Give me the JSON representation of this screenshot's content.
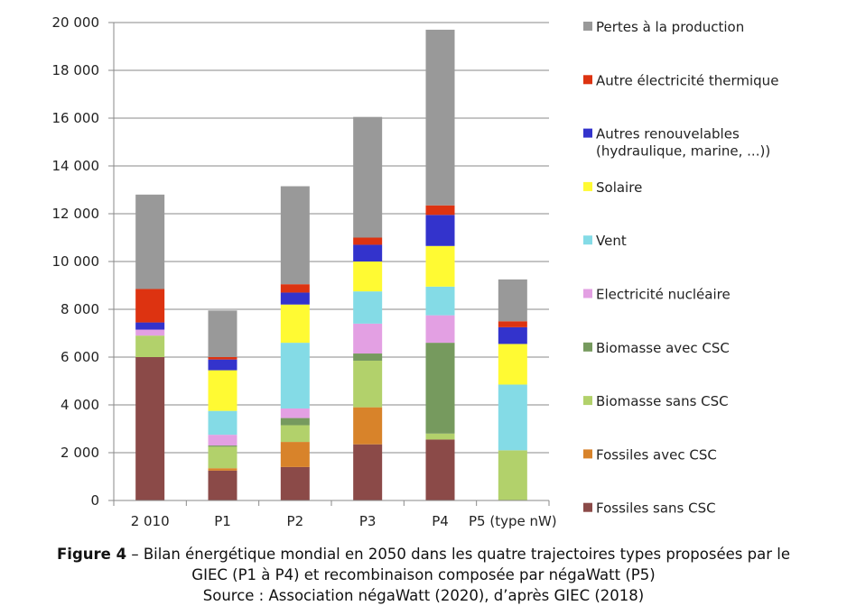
{
  "chart_data": {
    "type": "bar",
    "stacked": true,
    "categories": [
      "2 010",
      "P1",
      "P2",
      "P3",
      "P4",
      "P5 (type nW)"
    ],
    "ylim": [
      0,
      20000
    ],
    "yticks": [
      0,
      2000,
      4000,
      6000,
      8000,
      10000,
      12000,
      14000,
      16000,
      18000,
      20000
    ],
    "ytick_labels": [
      "0",
      "2 000",
      "4 000",
      "6 000",
      "8 000",
      "10 000",
      "12 000",
      "14 000",
      "16 000",
      "18 000",
      "20 000"
    ],
    "grid": true,
    "legend_position": "right",
    "series": [
      {
        "name": "Fossiles sans CSC",
        "color": "#8b4a48",
        "values": [
          6000,
          1250,
          1400,
          2350,
          2550,
          0
        ]
      },
      {
        "name": "Fossiles avec CSC",
        "color": "#d8832a",
        "values": [
          0,
          100,
          1050,
          1550,
          0,
          0
        ]
      },
      {
        "name": "Biomasse sans CSC",
        "color": "#b2d16b",
        "values": [
          900,
          900,
          700,
          1950,
          250,
          2100
        ]
      },
      {
        "name": "Biomasse avec CSC",
        "color": "#769a5e",
        "values": [
          0,
          50,
          300,
          300,
          3800,
          0
        ]
      },
      {
        "name": "Electricité nucléaire",
        "color": "#e3a0e3",
        "values": [
          250,
          450,
          400,
          1250,
          1150,
          0
        ]
      },
      {
        "name": "Vent",
        "color": "#84dbe6",
        "values": [
          0,
          1000,
          2750,
          1350,
          1200,
          2750
        ]
      },
      {
        "name": "Solaire",
        "color": "#fffa33",
        "values": [
          0,
          1700,
          1600,
          1250,
          1700,
          1700
        ]
      },
      {
        "name": "Autres renouvelables\n(hydraulique, marine, ...))",
        "color": "#3333cc",
        "values": [
          300,
          450,
          500,
          700,
          1300,
          700
        ]
      },
      {
        "name": "Autre électricité thermique",
        "color": "#dd3311",
        "values": [
          1400,
          100,
          350,
          300,
          400,
          250
        ]
      },
      {
        "name": "Pertes à la production",
        "color": "#999999",
        "values": [
          3950,
          1950,
          4100,
          5050,
          7350,
          1750
        ]
      }
    ]
  },
  "caption": {
    "label": "Figure 4",
    "line1": " – Bilan énergétique mondial en 2050 dans les quatre trajectoires types proposées par le",
    "line2": "GIEC (P1 à P4) et recombinaison composée par négaWatt (P5)",
    "line3": "Source : Association négaWatt (2020), d’après GIEC (2018)"
  }
}
